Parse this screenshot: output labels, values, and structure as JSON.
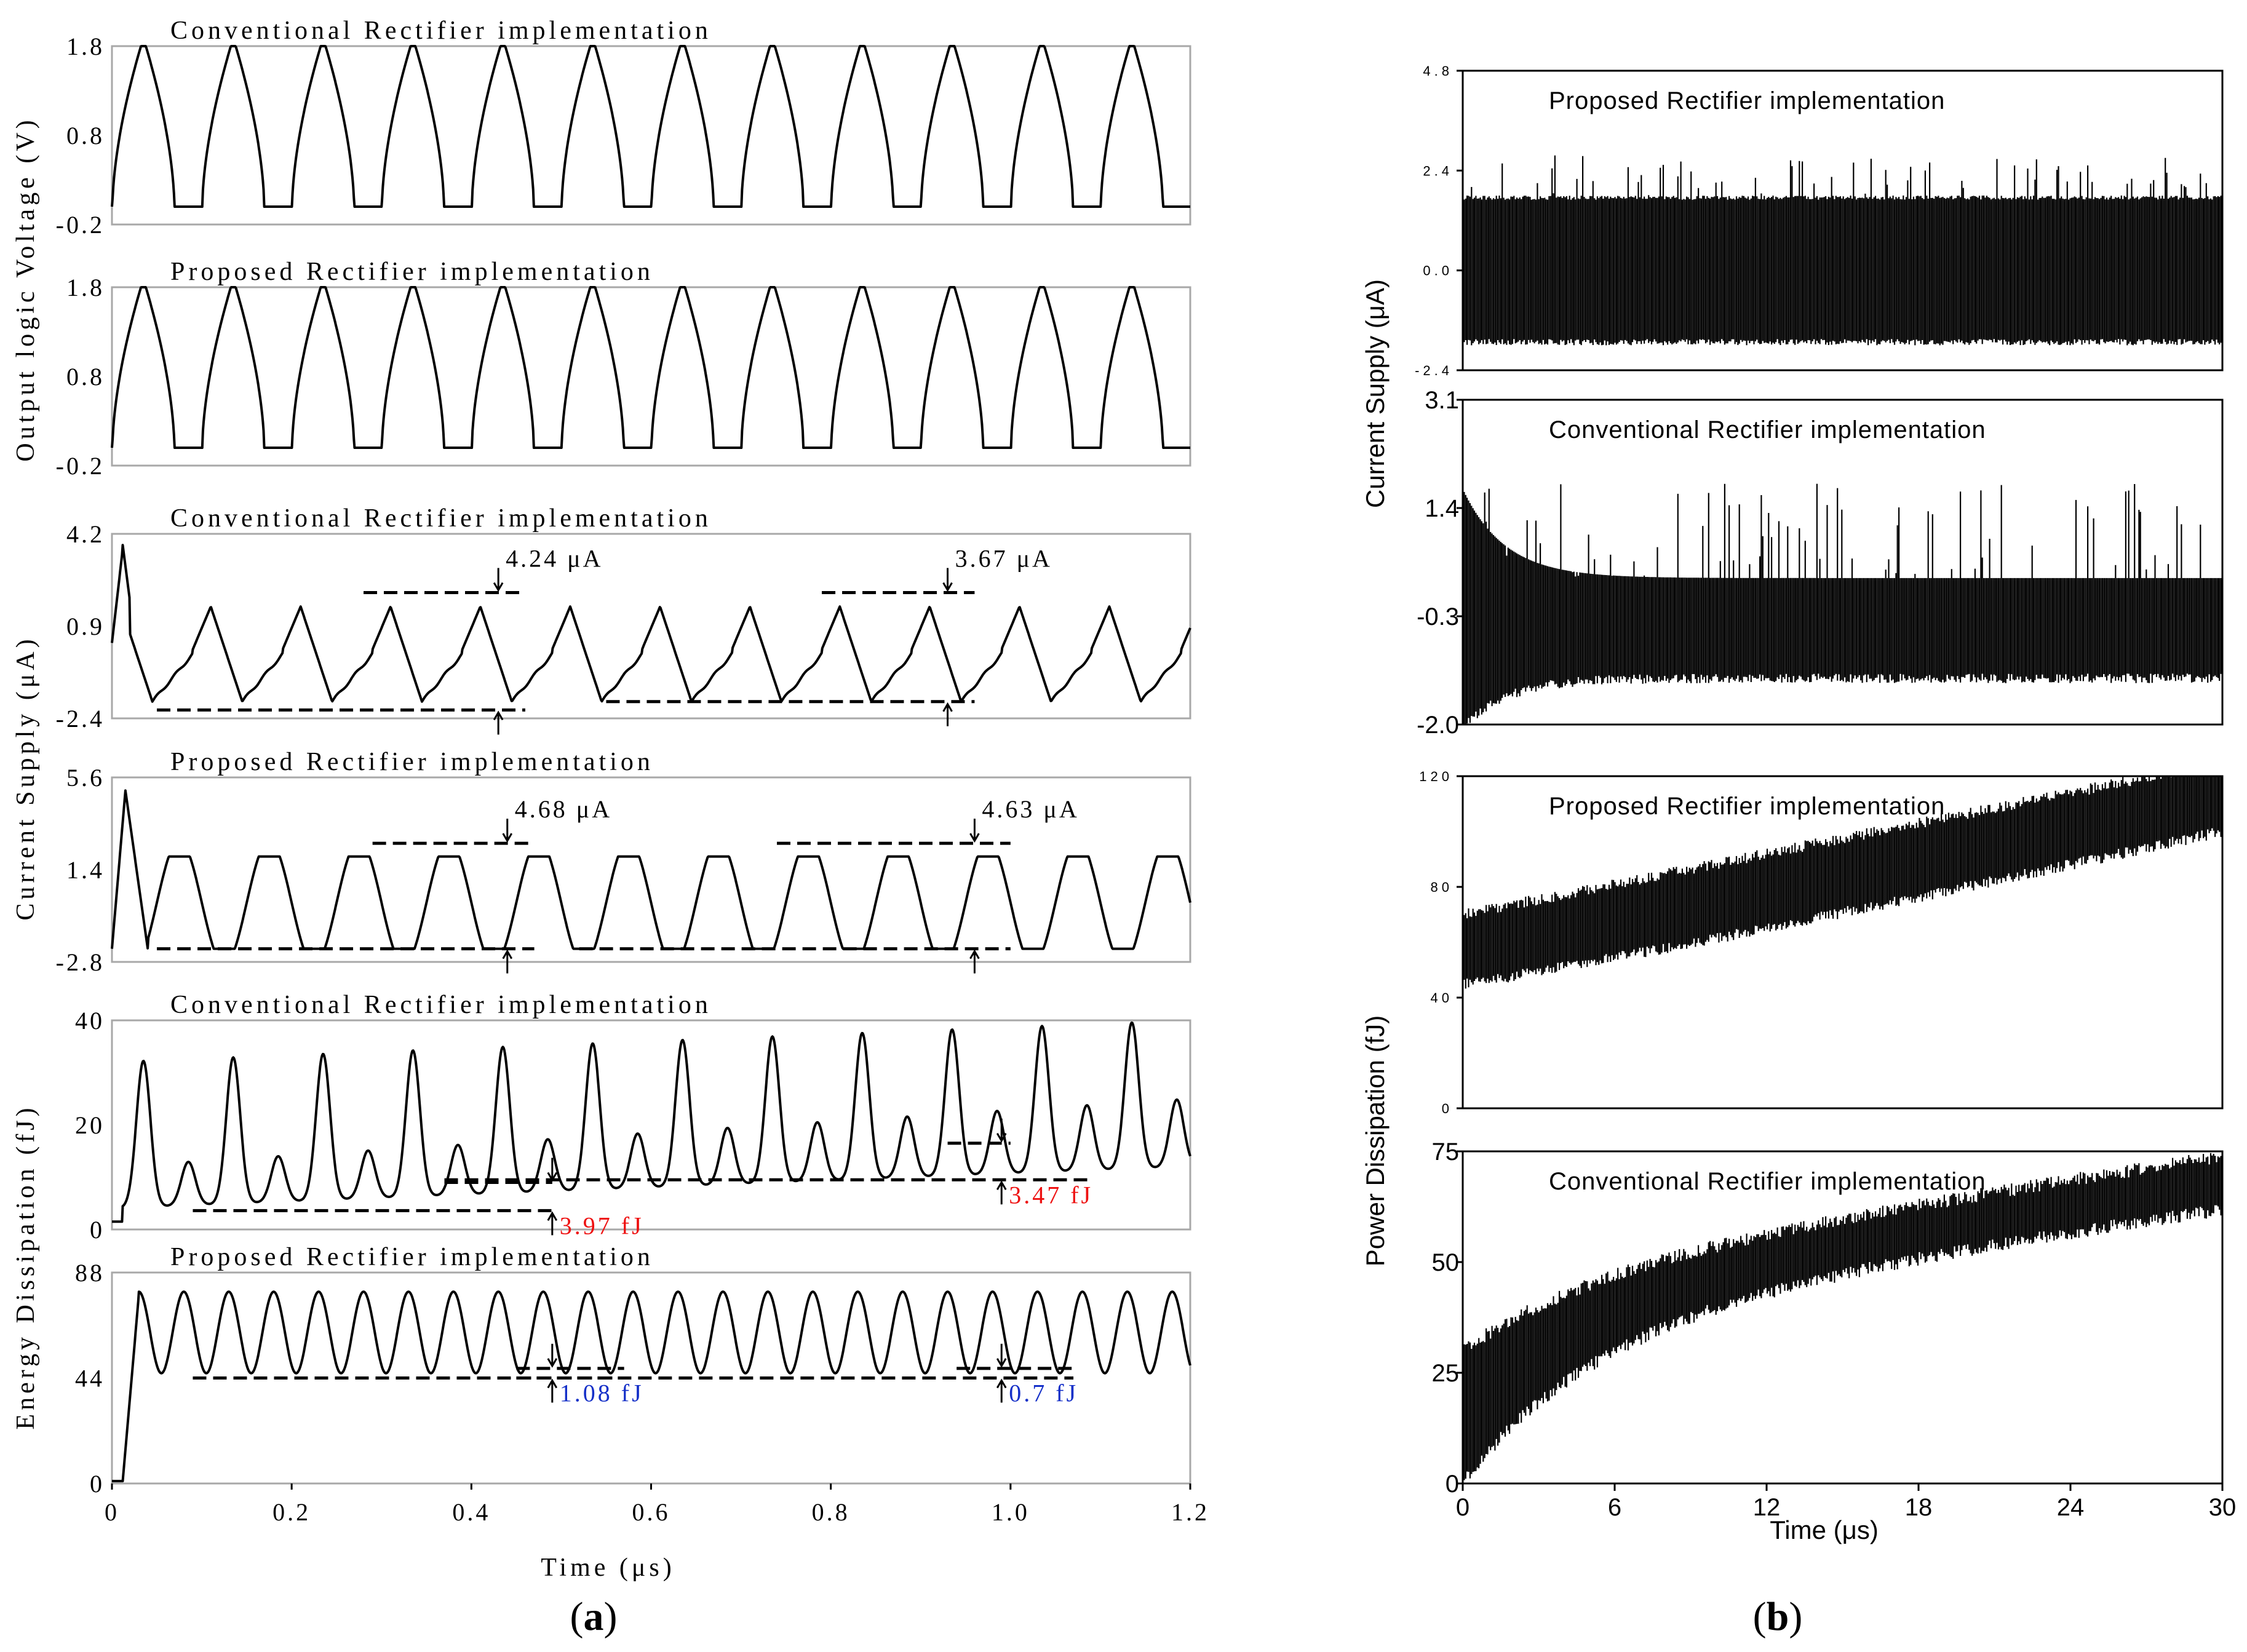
{
  "panel_labels": {
    "a": "(a)",
    "b": "(b)"
  },
  "chart_data": [
    {
      "id": "a1",
      "panel": "a",
      "type": "line",
      "title": "Conventional Rectifier implementation",
      "ylim": [
        -0.2,
        1.8
      ],
      "yticks": [
        "1.8",
        "0.8",
        "-0.2"
      ],
      "ytick_values": [
        1.8,
        0.8,
        -0.2
      ],
      "xlim": [
        0,
        1.2
      ],
      "ylabel_group": "Output logic Voltage (V)",
      "signal": {
        "kind": "pulse",
        "period": 0.1,
        "first_peak": 0.035,
        "low": 0.0,
        "high": 1.8,
        "width": 0.045
      }
    },
    {
      "id": "a2",
      "panel": "a",
      "type": "line",
      "title": "Proposed Rectifier implementation",
      "ylim": [
        -0.2,
        1.8
      ],
      "yticks": [
        "1.8",
        "0.8",
        "-0.2"
      ],
      "ytick_values": [
        1.8,
        0.8,
        -0.2
      ],
      "xlim": [
        0,
        1.2
      ],
      "signal": {
        "kind": "pulse",
        "period": 0.1,
        "first_peak": 0.035,
        "low": 0.0,
        "high": 1.8,
        "width": 0.045
      }
    },
    {
      "id": "a3",
      "panel": "a",
      "type": "line",
      "title": "Conventional Rectifier implementation",
      "ylim": [
        -2.4,
        4.2
      ],
      "yticks": [
        "4.2",
        "0.9",
        "-2.4"
      ],
      "ytick_values": [
        4.2,
        0.9,
        -2.4
      ],
      "xlim": [
        0,
        1.2
      ],
      "ylabel_group": "Current Supply (μA)",
      "signal": {
        "kind": "sawtooth",
        "period": 0.1,
        "low": -1.8,
        "high": 1.6,
        "spike": 3.8
      },
      "annotations": [
        {
          "text": "4.24 μA",
          "x": 0.43,
          "y_top": 2.1,
          "y_bot": -2.1,
          "x0": 0.28,
          "x1": 0.46,
          "x_low0": 0.05,
          "x_low1": 0.46,
          "color": "black"
        },
        {
          "text": "3.67 μA",
          "x": 0.93,
          "y_top": 2.1,
          "y_bot": -1.8,
          "x0": 0.79,
          "x1": 0.96,
          "x_low0": 0.55,
          "x_low1": 0.96,
          "color": "black"
        }
      ]
    },
    {
      "id": "a4",
      "panel": "a",
      "type": "line",
      "title": "Proposed Rectifier implementation",
      "ylim": [
        -2.8,
        5.6
      ],
      "yticks": [
        "5.6",
        "1.4",
        "-2.8"
      ],
      "ytick_values": [
        5.6,
        1.4,
        -2.8
      ],
      "xlim": [
        0,
        1.2
      ],
      "signal": {
        "kind": "trapezoid",
        "period": 0.1,
        "low": -2.2,
        "high": 2.0,
        "spike": 5.0
      },
      "annotations": [
        {
          "text": "4.68 μA",
          "x": 0.44,
          "y_top": 2.6,
          "y_bot": -2.2,
          "x0": 0.29,
          "x1": 0.47,
          "x_low0": 0.05,
          "x_low1": 0.47,
          "color": "black"
        },
        {
          "text": "4.63 μA",
          "x": 0.96,
          "y_top": 2.6,
          "y_bot": -2.2,
          "x0": 0.74,
          "x1": 1.0,
          "x_low0": 0.52,
          "x_low1": 1.0,
          "color": "black"
        }
      ]
    },
    {
      "id": "a5",
      "panel": "a",
      "type": "line",
      "title": "Conventional Rectifier implementation",
      "ylim": [
        0,
        40
      ],
      "yticks": [
        "40",
        "20",
        "0"
      ],
      "ytick_values": [
        40,
        20,
        0
      ],
      "xlim": [
        0,
        1.2
      ],
      "ylabel_group": "Energy Dissipation (fJ)",
      "signal": {
        "kind": "double_peak",
        "period": 0.1,
        "base": 4,
        "big_start": 32,
        "big_end": 40,
        "small_start": 12,
        "small_end": 25
      },
      "annotations": [
        {
          "text": "3.97 fJ",
          "x": 0.49,
          "y_top": 9,
          "y_bot": 3.6,
          "x0": 0.37,
          "x1": 0.49,
          "x_low0": 0.09,
          "x_low1": 0.49,
          "color": "red"
        },
        {
          "text": "3.47 fJ",
          "x": 0.99,
          "y_top": 16.5,
          "y_bot": 9.5,
          "x0": 0.93,
          "x1": 1.0,
          "x_low0": 0.37,
          "x_low1": 1.09,
          "color": "red"
        }
      ]
    },
    {
      "id": "a6",
      "panel": "a",
      "type": "line",
      "title": "Proposed Rectifier implementation",
      "ylim": [
        0,
        88
      ],
      "yticks": [
        "88",
        "44",
        "0"
      ],
      "ytick_values": [
        88,
        44,
        0
      ],
      "xlim": [
        0,
        1.2
      ],
      "xticks": [
        "0",
        "0.2",
        "0.4",
        "0.6",
        "0.8",
        "1.0",
        "1.2"
      ],
      "xtick_values": [
        0,
        0.2,
        0.4,
        0.6,
        0.8,
        1.0,
        1.2
      ],
      "xlabel": "Time (μs)",
      "signal": {
        "kind": "sine",
        "period": 0.05,
        "low": 46,
        "high": 80
      },
      "annotations": [
        {
          "text": "1.08 fJ",
          "x": 0.49,
          "y_top": 48,
          "y_bot": 44,
          "x0": 0.45,
          "x1": 0.57,
          "x_low0": 0.09,
          "x_low1": 0.57,
          "color": "blue"
        },
        {
          "text": "0.7 fJ",
          "x": 0.99,
          "y_top": 48,
          "y_bot": 44,
          "x0": 0.94,
          "x1": 1.07,
          "x_low0": 0.45,
          "x_low1": 1.07,
          "color": "blue"
        }
      ]
    },
    {
      "id": "b1",
      "panel": "b",
      "type": "line",
      "title": "Proposed Rectifier implementation",
      "ylim": [
        -2.4,
        4.8
      ],
      "yticks": [
        "4.8",
        "2.4",
        "0.0",
        "-2.4"
      ],
      "ytick_values": [
        4.8,
        2.4,
        0.0,
        -2.4
      ],
      "xlim": [
        0,
        30
      ],
      "ylabel_group": "Current Supply (μA)",
      "signal": {
        "kind": "dense",
        "low": -1.8,
        "high": 1.8,
        "spike_max": 2.8
      }
    },
    {
      "id": "b2",
      "panel": "b",
      "type": "line",
      "title": "Conventional Rectifier implementation",
      "ylim": [
        -2.0,
        3.1
      ],
      "yticks": [
        "3.1",
        "1.4",
        "-0.3",
        "-2.0"
      ],
      "ytick_values": [
        3.1,
        1.4,
        -0.3,
        -2.0
      ],
      "xlim": [
        0,
        30
      ],
      "signal": {
        "kind": "dense_decay",
        "low": -1.2,
        "high": 0.3,
        "spike_max": 1.8,
        "initial_low": -2.0,
        "initial_high": 1.7
      }
    },
    {
      "id": "b3",
      "panel": "b",
      "type": "line",
      "title": "Proposed Rectifier implementation",
      "ylim": [
        0,
        120
      ],
      "yticks": [
        "120",
        "80",
        "40",
        "0"
      ],
      "ytick_values": [
        120,
        80,
        40,
        0
      ],
      "xlim": [
        0,
        30
      ],
      "ylabel_group": "Power Dissipation (fJ)",
      "signal": {
        "kind": "dense_band",
        "start_low": 45,
        "start_high": 70,
        "end_low": 100,
        "end_high": 125
      }
    },
    {
      "id": "b4",
      "panel": "b",
      "type": "line",
      "title": "Conventional Rectifier implementation",
      "ylim": [
        0,
        75
      ],
      "yticks": [
        "75",
        "50",
        "25",
        "0"
      ],
      "ytick_values": [
        75,
        50,
        25,
        0
      ],
      "xlim": [
        0,
        30
      ],
      "xticks": [
        "0",
        "6",
        "12",
        "18",
        "24",
        "30"
      ],
      "xtick_values": [
        0,
        6,
        12,
        18,
        24,
        30
      ],
      "xlabel": "Time (μs)",
      "signal": {
        "kind": "dense_band_curve",
        "start_low": 0,
        "start_high": 30,
        "end_low": 62,
        "end_high": 74
      }
    }
  ]
}
